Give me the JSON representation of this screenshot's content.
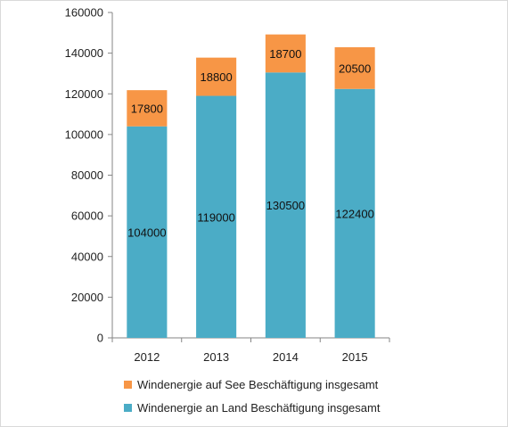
{
  "chart_data": {
    "type": "bar",
    "stacked": true,
    "categories": [
      "2012",
      "2013",
      "2014",
      "2015"
    ],
    "series": [
      {
        "name": "Windenergie an Land Beschäftigung insgesamt",
        "color": "#4bacc6",
        "values": [
          104000,
          119000,
          130500,
          122400
        ]
      },
      {
        "name": "Windenergie auf See Beschäftigung insgesamt",
        "color": "#f79646",
        "values": [
          17800,
          18800,
          18700,
          20500
        ]
      }
    ],
    "data_labels": {
      "Windenergie an Land Beschäftigung insgesamt": [
        "104000",
        "119000",
        "130500",
        "122400"
      ],
      "Windenergie auf See Beschäftigung insgesamt": [
        "17800",
        "18800",
        "18700",
        "20500"
      ]
    },
    "yticks": [
      "0",
      "20000",
      "40000",
      "60000",
      "80000",
      "100000",
      "120000",
      "140000",
      "160000"
    ],
    "ylim": [
      0,
      160000
    ],
    "grid": false,
    "legend_position": "bottom"
  }
}
